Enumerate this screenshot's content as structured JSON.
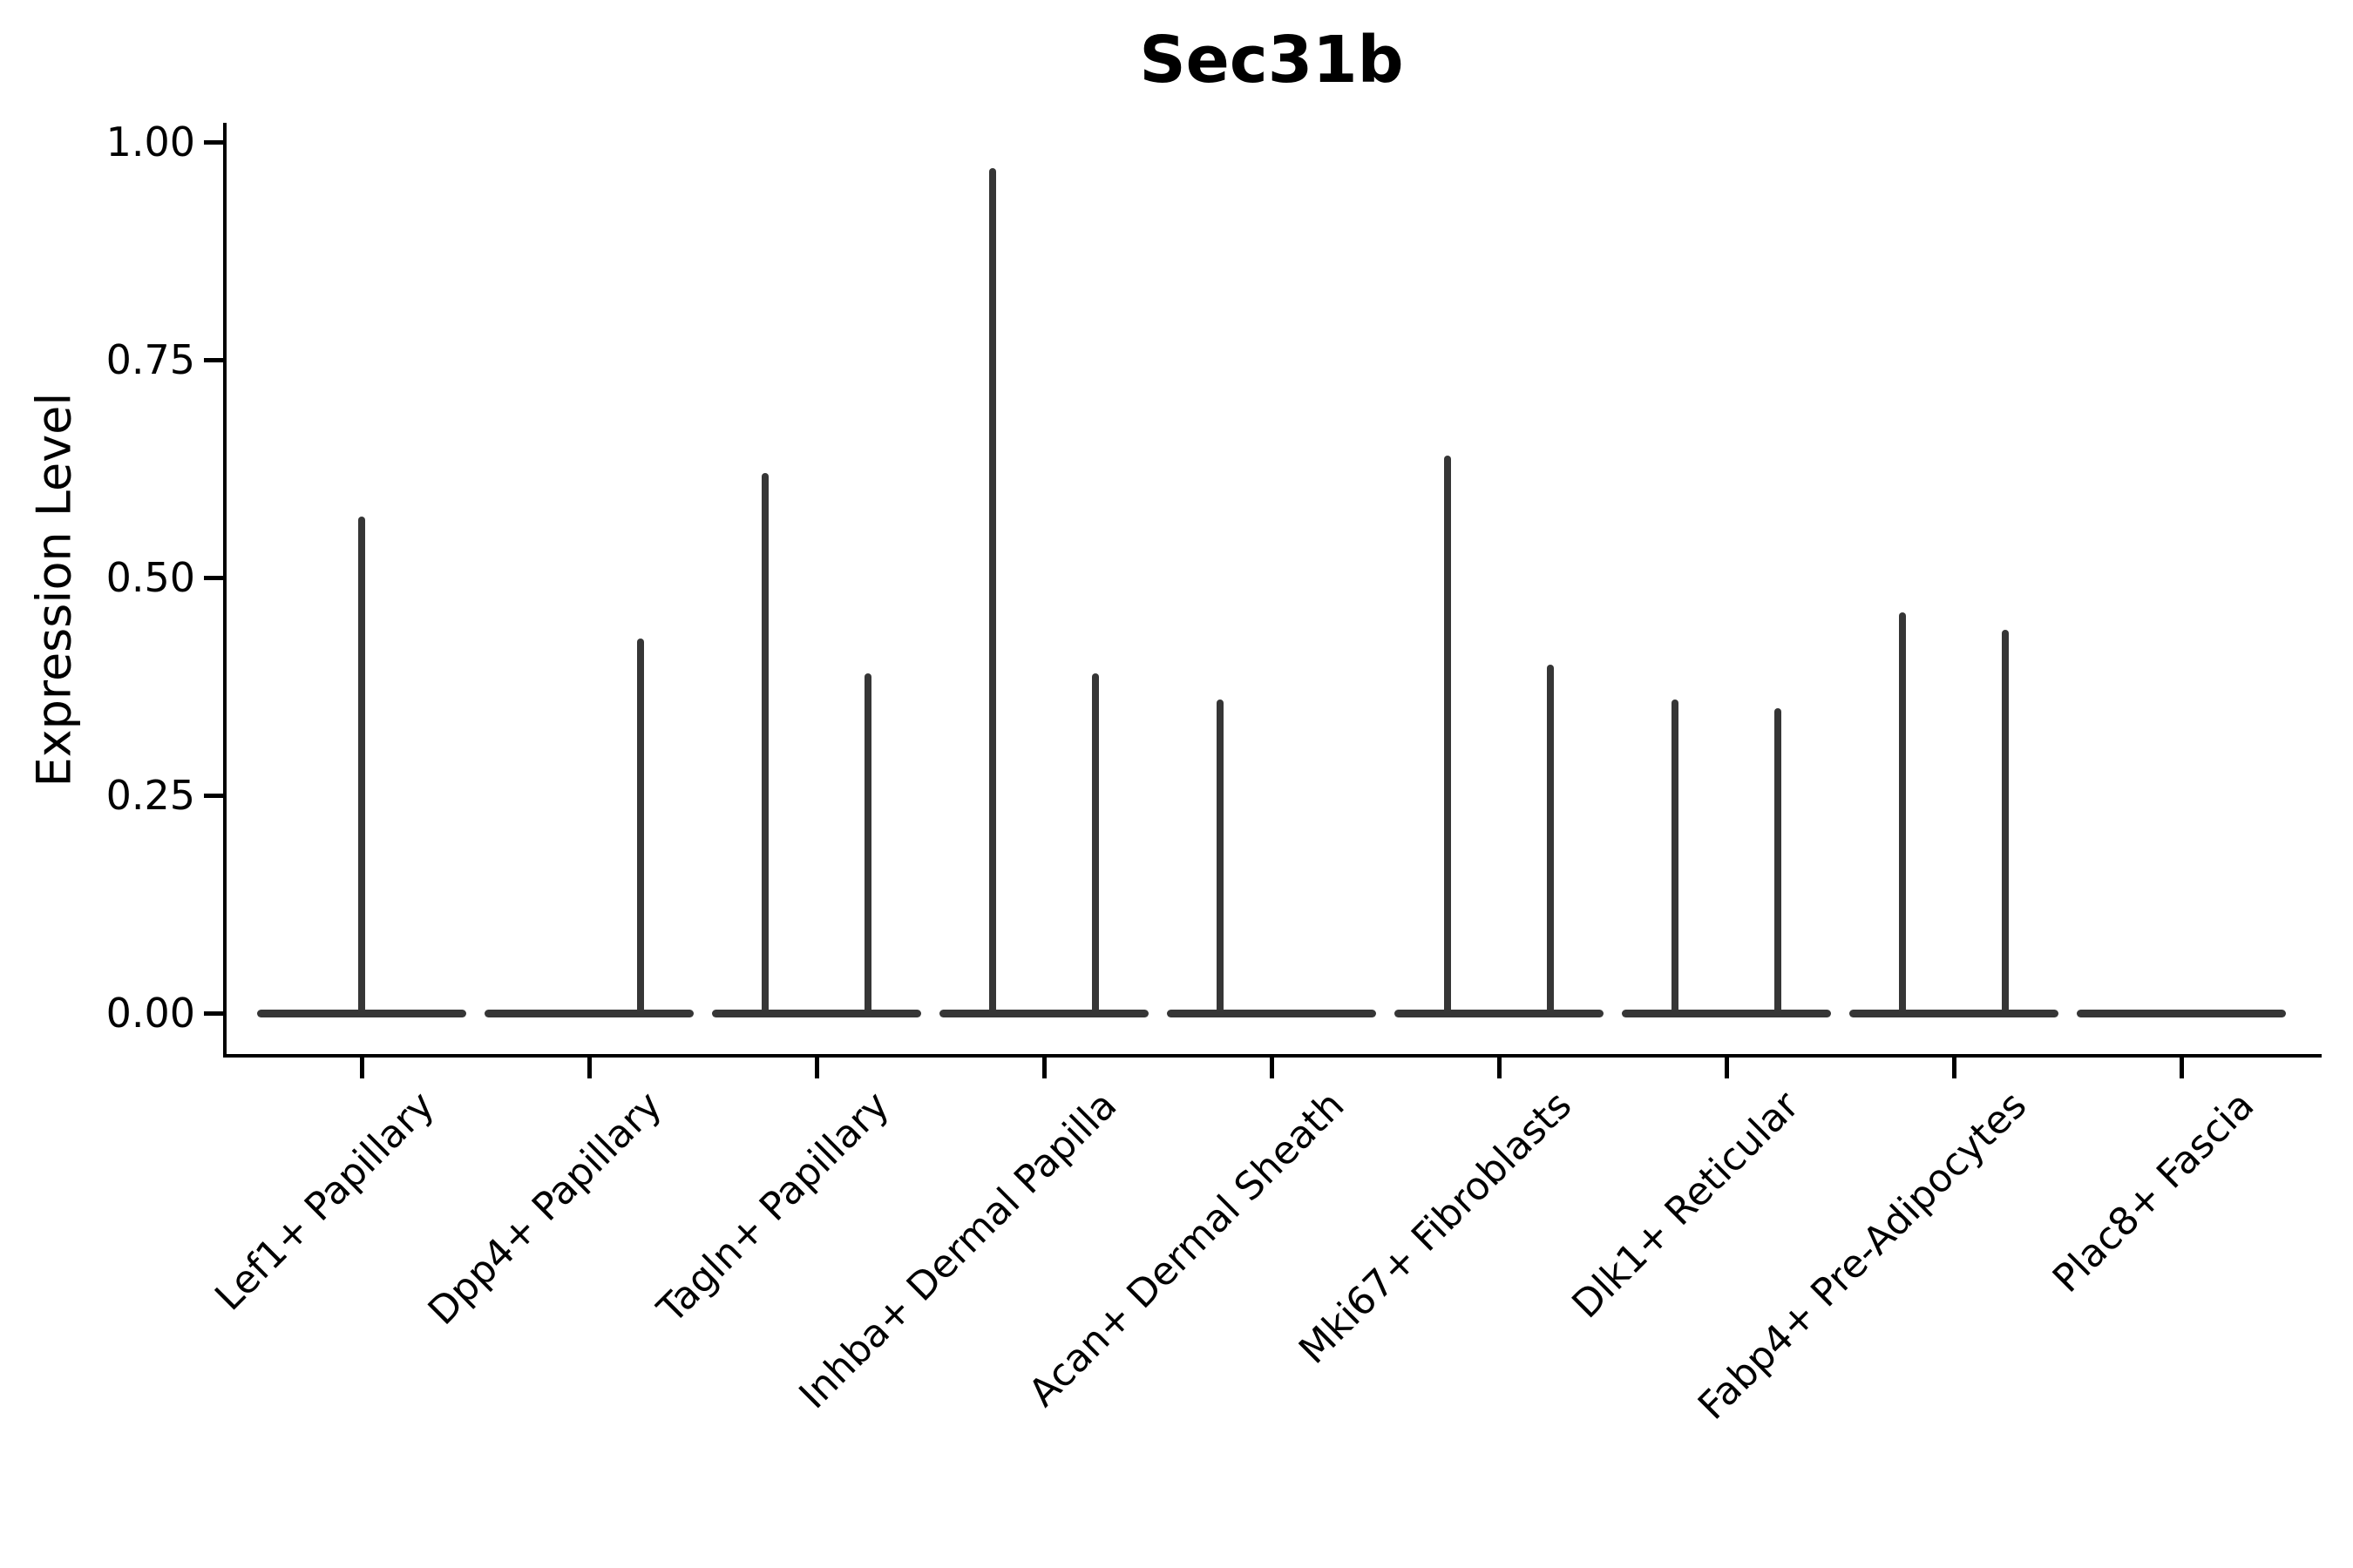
{
  "colors": {
    "violin": "#363636",
    "axis": "#000000",
    "text": "#000000",
    "background": "#ffffff"
  },
  "chart_data": {
    "type": "violin",
    "title": "Sec31b",
    "xlabel": "",
    "ylabel": "Expression Level",
    "ylim": [
      0,
      1.0
    ],
    "grid": false,
    "legend": null,
    "yticks": [
      {
        "value": 1.0,
        "label": "1.00"
      },
      {
        "value": 0.75,
        "label": "0.75"
      },
      {
        "value": 0.5,
        "label": "0.50"
      },
      {
        "value": 0.25,
        "label": "0.25"
      },
      {
        "value": 0.0,
        "label": "0.00"
      }
    ],
    "categories": [
      "Lef1+ Papillary",
      "Dpp4+ Papillary",
      "Tagln+ Papillary",
      "Inhba+ Dermal Papilla",
      "Acan+ Dermal Sheath",
      "Mki67+ Fibroblasts",
      "Dlk1+ Reticular",
      "Fabp4+ Pre-Adipocytes",
      "Plac8+ Fascia"
    ],
    "violins": [
      {
        "category": "Lef1+ Papillary",
        "baseline_value": 0.0,
        "spikes": [
          {
            "slot": "center",
            "max": 0.57
          }
        ]
      },
      {
        "category": "Dpp4+ Papillary",
        "baseline_value": 0.0,
        "spikes": [
          {
            "slot": "right",
            "max": 0.43
          }
        ]
      },
      {
        "category": "Tagln+ Papillary",
        "baseline_value": 0.0,
        "spikes": [
          {
            "slot": "left",
            "max": 0.62
          },
          {
            "slot": "right",
            "max": 0.39
          }
        ]
      },
      {
        "category": "Inhba+ Dermal Papilla",
        "baseline_value": 0.0,
        "spikes": [
          {
            "slot": "left",
            "max": 0.97
          },
          {
            "slot": "right",
            "max": 0.39
          }
        ]
      },
      {
        "category": "Acan+ Dermal Sheath",
        "baseline_value": 0.0,
        "spikes": [
          {
            "slot": "left",
            "max": 0.36
          }
        ]
      },
      {
        "category": "Mki67+ Fibroblasts",
        "baseline_value": 0.0,
        "spikes": [
          {
            "slot": "left",
            "max": 0.64
          },
          {
            "slot": "right",
            "max": 0.4
          }
        ]
      },
      {
        "category": "Dlk1+ Reticular",
        "baseline_value": 0.0,
        "spikes": [
          {
            "slot": "left",
            "max": 0.36
          },
          {
            "slot": "right",
            "max": 0.35
          }
        ]
      },
      {
        "category": "Fabp4+ Pre-Adipocytes",
        "baseline_value": 0.0,
        "spikes": [
          {
            "slot": "left",
            "max": 0.46
          },
          {
            "slot": "right",
            "max": 0.44
          }
        ]
      },
      {
        "category": "Plac8+ Fascia",
        "baseline_value": 0.0,
        "spikes": []
      }
    ]
  }
}
